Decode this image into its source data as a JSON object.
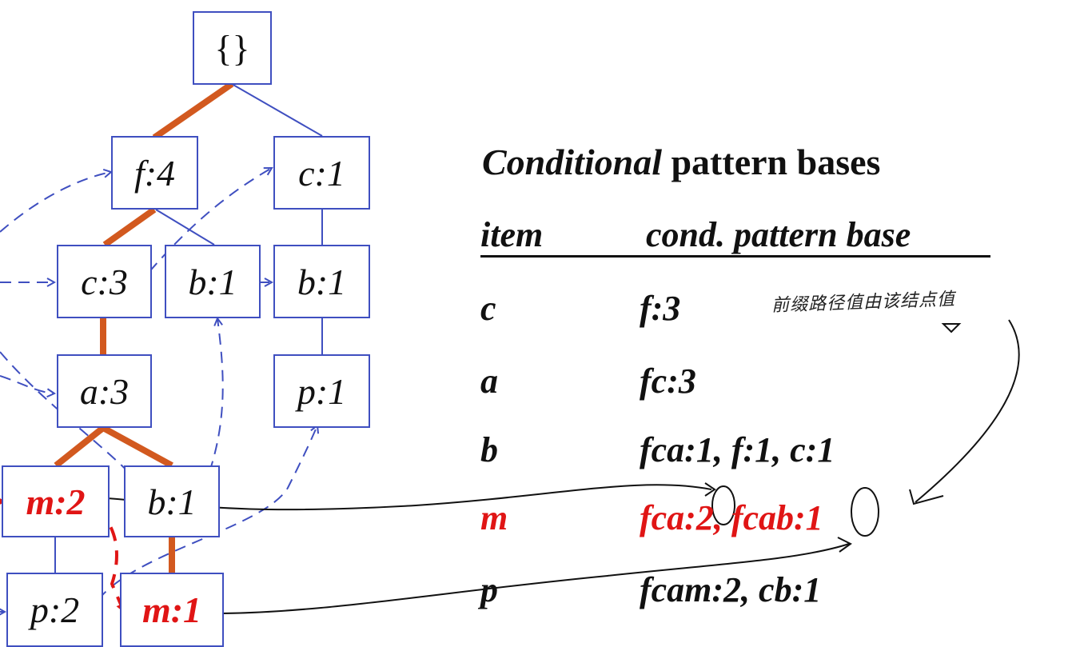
{
  "tree": {
    "root": "{}",
    "nodes": {
      "f4": "f:4",
      "c1_right": "c:1",
      "c3": "c:3",
      "b1_mid": "b:1",
      "b1_right": "b:1",
      "a3": "a:3",
      "p1": "p:1",
      "m2": "m:2",
      "b1_low": "b:1",
      "p2": "p:2",
      "m1": "m:1"
    }
  },
  "table": {
    "title_italic": "Conditional",
    "title_rest": " pattern bases",
    "col_item": "item",
    "col_base": "cond. pattern base",
    "rows": [
      {
        "item": "c",
        "base": "f:3"
      },
      {
        "item": "a",
        "base": "fc:3"
      },
      {
        "item": "b",
        "base": "fca:1, f:1, c:1"
      },
      {
        "item": "m",
        "base": "fca:2, fcab:1"
      },
      {
        "item": "p",
        "base": "fcam:2, cb:1"
      }
    ]
  },
  "annotation": {
    "handwritten_note": "前缀路径值由该结点值"
  },
  "colors": {
    "box_border": "#3f4fc0",
    "path_highlight": "#d2591f",
    "highlight_red": "#e01515"
  }
}
